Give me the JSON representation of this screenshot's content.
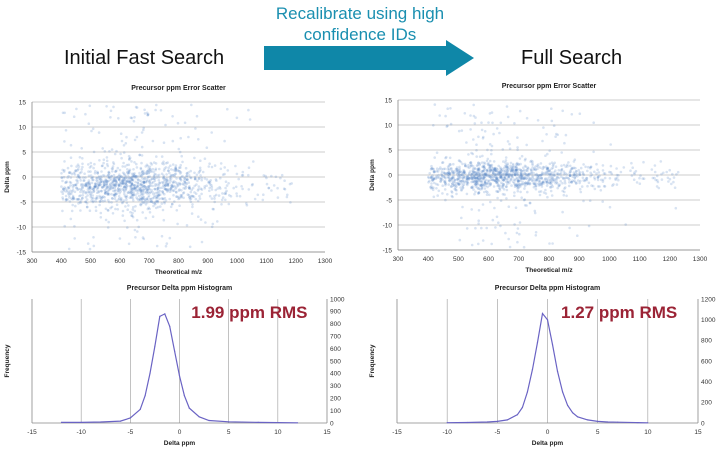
{
  "header": {
    "left_title": "Initial Fast Search",
    "right_title": "Full Search",
    "arrow_label_line1": "Recalibrate using high",
    "arrow_label_line2": "confidence IDs",
    "arrow_color": "#0f87a8",
    "rms_color": "#9b2335"
  },
  "chart_data": [
    {
      "id": "scatter-initial",
      "type": "scatter",
      "title": "Precursor ppm Error Scatter",
      "xlabel": "Theoretical m/z",
      "ylabel": "Delta ppm",
      "xlim": [
        300,
        1300
      ],
      "ylim": [
        -15,
        15
      ],
      "xticks": [
        300,
        400,
        500,
        600,
        700,
        800,
        900,
        1000,
        1100,
        1200,
        1300
      ],
      "yticks": [
        -15,
        -10,
        -5,
        0,
        5,
        10,
        15
      ],
      "grid": "horizontal",
      "point_color": "#4f7fc4",
      "center_ppm": -1.8,
      "spread_ppm": 1.99,
      "x_range": [
        400,
        1200
      ],
      "n_points": 1300
    },
    {
      "id": "scatter-full",
      "type": "scatter",
      "title": "Precursor ppm Error Scatter",
      "xlabel": "Theoretical m/z",
      "ylabel": "Delta ppm",
      "xlim": [
        300,
        1300
      ],
      "ylim": [
        -15,
        15
      ],
      "xticks": [
        300,
        400,
        500,
        600,
        700,
        800,
        900,
        1000,
        1100,
        1200,
        1300
      ],
      "yticks": [
        -15,
        -10,
        -5,
        0,
        5,
        10,
        15
      ],
      "grid": "horizontal",
      "point_color": "#4f7fc4",
      "center_ppm": -0.3,
      "spread_ppm": 1.27,
      "x_range": [
        400,
        1230
      ],
      "n_points": 1300
    },
    {
      "id": "hist-initial",
      "type": "line",
      "title": "Precursor Delta ppm Histogram",
      "xlabel": "Delta ppm",
      "ylabel": "Frequency",
      "xlim": [
        -15,
        15
      ],
      "ylim": [
        0,
        1000
      ],
      "xticks": [
        -15,
        -10,
        -5,
        0,
        5,
        10,
        15
      ],
      "yticks": [
        0,
        100,
        200,
        300,
        400,
        500,
        600,
        700,
        800,
        900,
        1000
      ],
      "grid": "vertical",
      "annotation": "1.99 ppm RMS",
      "line_color": "#6a63c4",
      "x": [
        -12,
        -10,
        -8,
        -6,
        -5,
        -4,
        -3.5,
        -3,
        -2.5,
        -2,
        -1.5,
        -1,
        -0.5,
        0,
        0.5,
        1,
        2,
        3,
        5,
        8,
        12
      ],
      "y": [
        5,
        5,
        8,
        15,
        40,
        110,
        220,
        400,
        620,
        860,
        880,
        780,
        580,
        380,
        220,
        120,
        50,
        20,
        10,
        5,
        2
      ]
    },
    {
      "id": "hist-full",
      "type": "line",
      "title": "Precursor Delta ppm Histogram",
      "xlabel": "Delta ppm",
      "ylabel": "Frequency",
      "xlim": [
        -15,
        15
      ],
      "ylim": [
        0,
        1200
      ],
      "xticks": [
        -15,
        -10,
        -5,
        0,
        5,
        10,
        15
      ],
      "yticks": [
        0,
        200,
        400,
        600,
        800,
        1000,
        1200
      ],
      "grid": "vertical",
      "annotation": "1.27 ppm RMS",
      "line_color": "#6a63c4",
      "x": [
        -10,
        -8,
        -6,
        -5,
        -4,
        -3,
        -2.5,
        -2,
        -1.5,
        -1,
        -0.5,
        0,
        0.5,
        1,
        1.5,
        2,
        2.5,
        3,
        4,
        5,
        6,
        7,
        9,
        10
      ],
      "y": [
        3,
        5,
        10,
        15,
        30,
        80,
        150,
        300,
        520,
        780,
        1060,
        1000,
        760,
        500,
        300,
        170,
        100,
        60,
        30,
        15,
        10,
        8,
        4,
        2
      ]
    }
  ]
}
